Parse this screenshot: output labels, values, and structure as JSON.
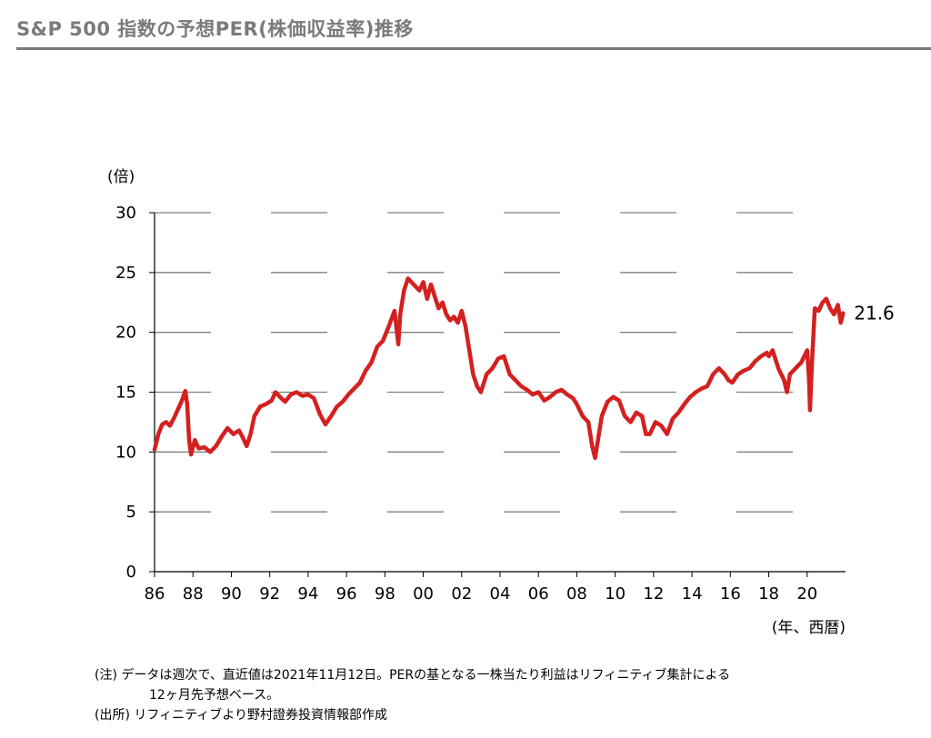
{
  "header": {
    "title": "S&P 500 指数の予想PER(株価収益率)推移"
  },
  "notes": {
    "line1": "(注) データは週次で、直近値は2021年11月12日。PERの基となる一株当たり利益はリフィニティブ集計による",
    "line2": "12ヶ月先予想ベース。",
    "line3": "(出所) リフィニティブより野村證券投資情報部作成"
  },
  "chart_data": {
    "type": "line",
    "title": "S&P 500 指数の予想PER(株価収益率)推移",
    "ylabel": "(倍)",
    "xlabel": "(年、西暦)",
    "ylim": [
      0,
      30
    ],
    "yticks": [
      0,
      5,
      10,
      15,
      20,
      25,
      30
    ],
    "xlim": [
      1986,
      2022
    ],
    "xticks": [
      1986,
      1988,
      1990,
      1992,
      1994,
      1996,
      1998,
      2000,
      2002,
      2004,
      2006,
      2008,
      2010,
      2012,
      2014,
      2016,
      2018,
      2020
    ],
    "xtick_labels": [
      "86",
      "88",
      "90",
      "92",
      "94",
      "96",
      "98",
      "00",
      "02",
      "04",
      "06",
      "08",
      "10",
      "12",
      "14",
      "16",
      "18",
      "20"
    ],
    "grid": "dashed-horizontal",
    "series": [
      {
        "name": "S&P 500 予想PER",
        "color": "#d42020",
        "x": [
          1986.0,
          1986.2,
          1986.4,
          1986.6,
          1986.8,
          1987.0,
          1987.2,
          1987.4,
          1987.6,
          1987.7,
          1987.8,
          1987.9,
          1988.1,
          1988.3,
          1988.6,
          1988.9,
          1989.2,
          1989.5,
          1989.8,
          1990.1,
          1990.4,
          1990.6,
          1990.8,
          1991.0,
          1991.2,
          1991.5,
          1991.8,
          1992.1,
          1992.3,
          1992.6,
          1992.8,
          1993.1,
          1993.4,
          1993.7,
          1994.0,
          1994.3,
          1994.6,
          1994.9,
          1995.2,
          1995.5,
          1995.8,
          1996.1,
          1996.4,
          1996.7,
          1997.0,
          1997.3,
          1997.6,
          1997.9,
          1998.2,
          1998.5,
          1998.7,
          1998.8,
          1999.0,
          1999.2,
          1999.5,
          1999.8,
          2000.0,
          2000.2,
          2000.4,
          2000.6,
          2000.8,
          2001.0,
          2001.2,
          2001.4,
          2001.6,
          2001.8,
          2002.0,
          2002.2,
          2002.4,
          2002.6,
          2002.8,
          2003.0,
          2003.3,
          2003.6,
          2003.9,
          2004.2,
          2004.5,
          2004.8,
          2005.1,
          2005.4,
          2005.7,
          2006.0,
          2006.3,
          2006.6,
          2006.9,
          2007.2,
          2007.5,
          2007.8,
          2008.0,
          2008.3,
          2008.6,
          2008.8,
          2008.95,
          2009.1,
          2009.3,
          2009.6,
          2009.9,
          2010.2,
          2010.5,
          2010.8,
          2011.1,
          2011.4,
          2011.6,
          2011.8,
          2012.1,
          2012.4,
          2012.7,
          2013.0,
          2013.3,
          2013.6,
          2013.9,
          2014.2,
          2014.5,
          2014.8,
          2015.1,
          2015.4,
          2015.7,
          2015.9,
          2016.1,
          2016.4,
          2016.7,
          2017.0,
          2017.3,
          2017.6,
          2017.9,
          2018.0,
          2018.2,
          2018.5,
          2018.8,
          2018.95,
          2019.1,
          2019.4,
          2019.7,
          2020.0,
          2020.1,
          2020.15,
          2020.25,
          2020.4,
          2020.6,
          2020.8,
          2021.0,
          2021.2,
          2021.4,
          2021.6,
          2021.75,
          2021.87
        ],
        "values": [
          10.2,
          11.5,
          12.3,
          12.5,
          12.2,
          12.8,
          13.5,
          14.2,
          15.1,
          14.0,
          11.0,
          9.8,
          11.0,
          10.3,
          10.4,
          10.0,
          10.5,
          11.3,
          12.0,
          11.5,
          11.8,
          11.2,
          10.5,
          11.5,
          13.0,
          13.8,
          14.0,
          14.3,
          15.0,
          14.5,
          14.2,
          14.8,
          15.0,
          14.7,
          14.8,
          14.5,
          13.2,
          12.3,
          13.0,
          13.8,
          14.2,
          14.8,
          15.3,
          15.8,
          16.8,
          17.5,
          18.8,
          19.3,
          20.5,
          21.8,
          19.0,
          21.5,
          23.5,
          24.5,
          24.0,
          23.5,
          24.2,
          22.8,
          24.0,
          23.0,
          22.0,
          22.5,
          21.5,
          21.0,
          21.3,
          20.8,
          21.8,
          20.5,
          18.5,
          16.5,
          15.5,
          15.0,
          16.5,
          17.0,
          17.8,
          18.0,
          16.5,
          16.0,
          15.5,
          15.2,
          14.8,
          15.0,
          14.3,
          14.6,
          15.0,
          15.2,
          14.8,
          14.5,
          14.0,
          13.0,
          12.5,
          10.5,
          9.5,
          11.0,
          13.0,
          14.2,
          14.6,
          14.3,
          13.0,
          12.5,
          13.3,
          13.0,
          11.5,
          11.5,
          12.5,
          12.2,
          11.5,
          12.8,
          13.3,
          14.0,
          14.6,
          15.0,
          15.3,
          15.5,
          16.5,
          17.0,
          16.5,
          16.0,
          15.8,
          16.5,
          16.8,
          17.0,
          17.6,
          18.0,
          18.3,
          18.0,
          18.5,
          17.0,
          16.0,
          15.0,
          16.5,
          17.0,
          17.5,
          18.5,
          16.0,
          13.5,
          17.5,
          22.0,
          21.8,
          22.5,
          22.8,
          22.0,
          21.5,
          22.3,
          20.8,
          21.6
        ]
      }
    ],
    "annotations": [
      {
        "text": "21.6",
        "x": 2021.87,
        "y": 21.6
      }
    ]
  }
}
